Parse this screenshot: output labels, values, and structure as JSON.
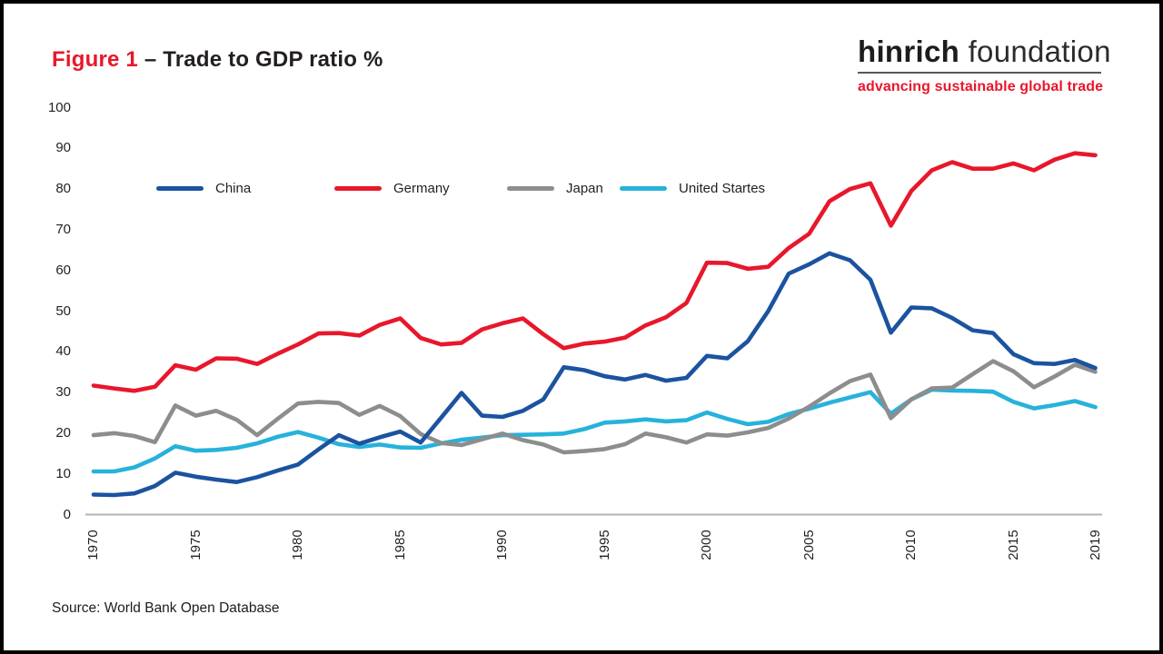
{
  "header": {
    "figure_label": "Figure 1",
    "title_rest": " – Trade to GDP ratio %"
  },
  "logo": {
    "name_bold": "hinrich",
    "name_regular": "foundation",
    "tagline": "advancing sustainable global trade"
  },
  "source": "Source: World Bank Open Database",
  "colors": {
    "accent_red": "#e8172b",
    "china": "#1b53a0",
    "germany": "#e8172b",
    "japan": "#8d8d8d",
    "united_states": "#27b2db",
    "axis_line": "#b3b3b3",
    "text": "#231f20"
  },
  "chart_data": {
    "type": "line",
    "title": "Trade to GDP ratio %",
    "xlabel": "",
    "ylabel": "",
    "ylim": [
      0,
      100
    ],
    "grid": false,
    "legend_position": "top-left-inside",
    "y_ticks": [
      0,
      10,
      20,
      30,
      40,
      50,
      60,
      70,
      80,
      90,
      100
    ],
    "x_tick_labels": [
      "1970",
      "1975",
      "1980",
      "1985",
      "1990",
      "1995",
      "2000",
      "2005",
      "2010",
      "2015",
      "2019"
    ],
    "x_tick_years": [
      1970,
      1975,
      1980,
      1985,
      1990,
      1995,
      2000,
      2005,
      2010,
      2015,
      2019
    ],
    "x": [
      1970,
      1971,
      1972,
      1973,
      1974,
      1975,
      1976,
      1977,
      1978,
      1979,
      1980,
      1981,
      1982,
      1983,
      1984,
      1985,
      1986,
      1987,
      1988,
      1989,
      1990,
      1991,
      1992,
      1993,
      1994,
      1995,
      1996,
      1997,
      1998,
      1999,
      2000,
      2001,
      2002,
      2003,
      2004,
      2005,
      2006,
      2007,
      2008,
      2009,
      2010,
      2011,
      2012,
      2013,
      2014,
      2015,
      2016,
      2017,
      2018,
      2019
    ],
    "series": [
      {
        "name": "China",
        "color": "#1b53a0",
        "values": [
          4.9,
          4.8,
          5.2,
          7.0,
          10.3,
          9.3,
          8.6,
          8.0,
          9.2,
          10.8,
          12.3,
          16.0,
          19.5,
          17.4,
          19.0,
          20.4,
          17.7,
          23.8,
          29.9,
          24.3,
          24.0,
          25.5,
          28.3,
          36.2,
          35.5,
          34.0,
          33.2,
          34.3,
          32.9,
          33.6,
          39.0,
          38.4,
          42.6,
          50.0,
          59.2,
          61.5,
          64.2,
          62.5,
          57.7,
          44.7,
          50.9,
          50.7,
          48.3,
          45.3,
          44.6,
          39.4,
          37.2,
          37.0,
          38.0,
          36.0
        ]
      },
      {
        "name": "Germany",
        "color": "#e8172b",
        "values": [
          31.7,
          31.0,
          30.4,
          31.4,
          36.7,
          35.6,
          38.4,
          38.3,
          37.0,
          39.5,
          41.8,
          44.5,
          44.6,
          44.0,
          46.6,
          48.2,
          43.4,
          41.8,
          42.2,
          45.5,
          47.0,
          48.2,
          44.3,
          40.9,
          42.0,
          42.5,
          43.5,
          46.5,
          48.5,
          52.0,
          61.9,
          61.8,
          60.4,
          60.9,
          65.5,
          69.0,
          77.0,
          80.0,
          81.4,
          71.0,
          79.5,
          84.6,
          86.6,
          85.0,
          85.0,
          86.3,
          84.6,
          87.2,
          88.8,
          88.3
        ]
      },
      {
        "name": "Japan",
        "color": "#8d8d8d",
        "values": [
          19.5,
          20.0,
          19.3,
          17.8,
          26.8,
          24.3,
          25.5,
          23.3,
          19.5,
          23.5,
          27.3,
          27.7,
          27.4,
          24.5,
          26.7,
          24.2,
          19.8,
          17.6,
          17.1,
          18.5,
          19.9,
          18.3,
          17.2,
          15.3,
          15.6,
          16.1,
          17.3,
          19.9,
          19.0,
          17.7,
          19.7,
          19.4,
          20.2,
          21.3,
          23.6,
          26.5,
          29.8,
          32.8,
          34.4,
          23.7,
          28.3,
          31.0,
          31.2,
          34.5,
          37.7,
          35.2,
          31.3,
          33.9,
          36.8,
          35.1
        ]
      },
      {
        "name": "United Startes",
        "color": "#27b2db",
        "values": [
          10.6,
          10.6,
          11.6,
          13.8,
          16.8,
          15.7,
          15.9,
          16.4,
          17.5,
          19.1,
          20.3,
          18.9,
          17.3,
          16.6,
          17.2,
          16.5,
          16.4,
          17.5,
          18.4,
          18.9,
          19.5,
          19.6,
          19.7,
          19.9,
          21.0,
          22.6,
          22.9,
          23.4,
          22.9,
          23.2,
          25.1,
          23.5,
          22.2,
          22.8,
          24.7,
          26.0,
          27.5,
          28.8,
          30.1,
          24.8,
          28.3,
          30.7,
          30.5,
          30.4,
          30.2,
          27.7,
          26.1,
          26.9,
          27.9,
          26.4
        ]
      }
    ]
  }
}
